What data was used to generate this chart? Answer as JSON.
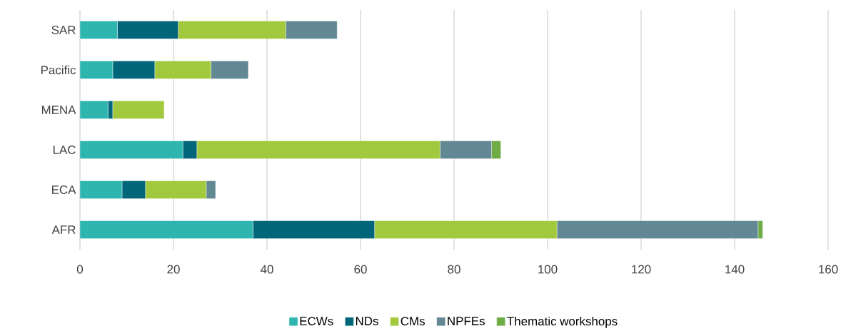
{
  "chart_data": {
    "type": "bar",
    "orientation": "horizontal",
    "stacked": true,
    "categories": [
      "SAR",
      "Pacific",
      "MENA",
      "LAC",
      "ECA",
      "AFR"
    ],
    "series": [
      {
        "name": "ECWs",
        "color": "#2fb5b0",
        "values": [
          8,
          7,
          6,
          22,
          9,
          37
        ]
      },
      {
        "name": "NDs",
        "color": "#02667a",
        "values": [
          13,
          9,
          1,
          3,
          5,
          26
        ]
      },
      {
        "name": "CMs",
        "color": "#a2c93e",
        "values": [
          23,
          12,
          11,
          52,
          13,
          39
        ]
      },
      {
        "name": "NPFEs",
        "color": "#628893",
        "values": [
          11,
          8,
          null,
          11,
          2,
          43
        ]
      },
      {
        "name": "Thematic workshops",
        "color": "#6fac46",
        "values": [
          null,
          null,
          null,
          2,
          null,
          1
        ]
      }
    ],
    "xlim": [
      0,
      160
    ],
    "xticks": [
      0,
      20,
      40,
      60,
      80,
      100,
      120,
      140,
      160
    ],
    "grid": "x",
    "legend": "bottom"
  }
}
